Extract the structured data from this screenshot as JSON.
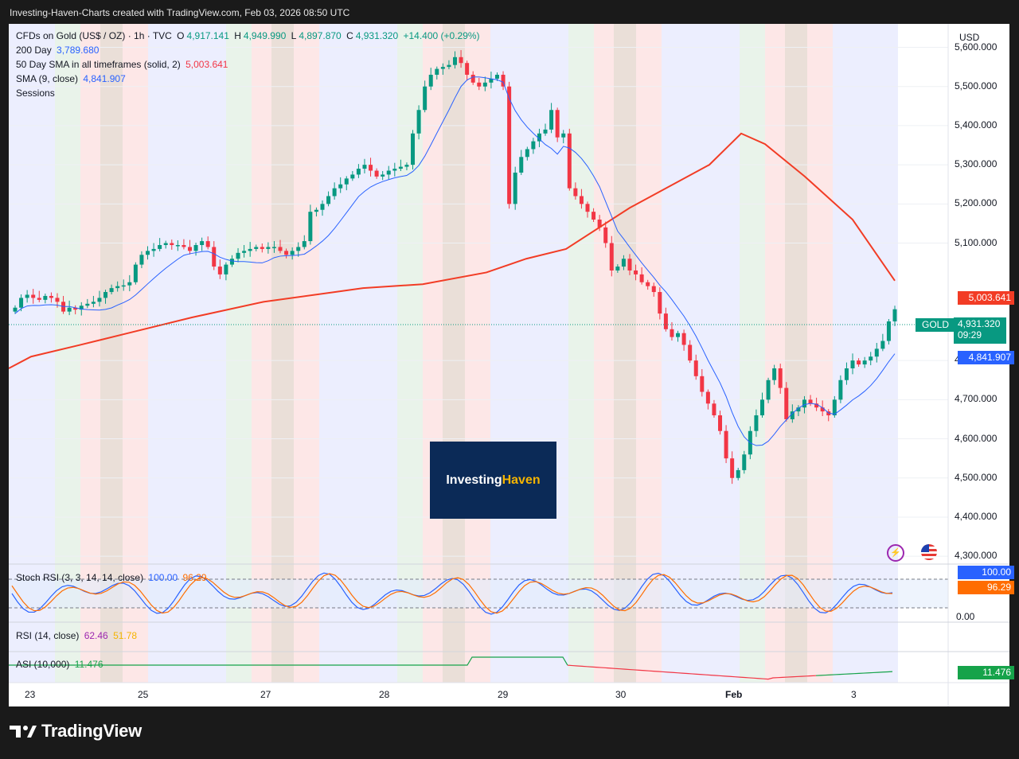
{
  "topbar": {
    "caption": "Investing-Haven-Charts created with TradingView.com, Feb 03, 2026 08:50 UTC"
  },
  "legend": {
    "symbol": "CFDs on Gold (US$ / OZ) · 1h · TVC",
    "o_label": "O",
    "o_value": "4,917.141",
    "h_label": "H",
    "h_value": "4,949.990",
    "l_label": "L",
    "l_value": "4,897.870",
    "c_label": "C",
    "c_value": "4,931.320",
    "change": "+14.400 (+0.29%)",
    "sma200_label": "200 Day",
    "sma200_value": "3,789.680",
    "sma50_label": "50 Day SMA in all timeframes (solid, 2)",
    "sma50_value": "5,003.641",
    "sma9_label": "SMA (9, close)",
    "sma9_value": "4,841.907",
    "sessions_label": "Sessions"
  },
  "price_axis": {
    "currency": "USD",
    "ticks": [
      "5,600.000",
      "5,500.000",
      "5,400.000",
      "5,300.000",
      "5,200.000",
      "5,100.000",
      "4,800.000",
      "4,700.000",
      "4,600.000",
      "4,500.000",
      "4,400.000",
      "4,300.000"
    ],
    "tick_values": [
      5600,
      5500,
      5400,
      5300,
      5200,
      5100,
      4800,
      4700,
      4600,
      4500,
      4400,
      4300
    ],
    "tag_sma50": "5,003.641",
    "tag_symbol": "GOLD",
    "tag_price": "4,931.320",
    "tag_countdown": "09:29",
    "tag_sma9": "4,841.907"
  },
  "time_axis": {
    "labels": [
      "23",
      "25",
      "27",
      "28",
      "29",
      "30",
      "Feb",
      "3"
    ]
  },
  "watermark": {
    "part1": "Investing",
    "part2": "Haven"
  },
  "stoch": {
    "label": "Stoch RSI (3, 3, 14, 14, close)",
    "k_value": "100.00",
    "d_value": "96.29",
    "axis_zero": "0.00",
    "tag_k": "100.00",
    "tag_d": "96.29"
  },
  "rsi": {
    "label": "RSI (14, close)",
    "value1": "62.46",
    "value2": "51.78"
  },
  "asi": {
    "label": "ASI (10,000)",
    "value": "11.476",
    "tag": "11.476"
  },
  "footer": {
    "brand": "TradingView"
  },
  "colors": {
    "up": "#089981",
    "down": "#f23645",
    "sma50": "#f23c25",
    "sma9": "#2962ff",
    "stoch_k": "#2962ff",
    "stoch_d": "#ff6d00",
    "asi_pos": "#16a34a",
    "asi_neg": "#f23645",
    "logo_bg": "#0b2a57",
    "logo_accent": "#f5b400"
  },
  "chart_data": {
    "type": "candlestick",
    "title": "CFDs on Gold (US$ / OZ) · 1h · TVC",
    "ylabel": "USD",
    "ylim": [
      4280,
      5660
    ],
    "x_labels": [
      "23",
      "25",
      "27",
      "28",
      "29",
      "30",
      "Feb",
      "3"
    ],
    "close": [
      4935,
      4960,
      4968,
      4960,
      4955,
      4965,
      4960,
      4950,
      4925,
      4935,
      4930,
      4940,
      4945,
      4950,
      4960,
      4975,
      4985,
      4990,
      4992,
      5000,
      5045,
      5070,
      5080,
      5085,
      5095,
      5100,
      5095,
      5095,
      5090,
      5080,
      5095,
      5105,
      5090,
      5040,
      5020,
      5045,
      5060,
      5075,
      5080,
      5085,
      5090,
      5085,
      5090,
      5090,
      5080,
      5070,
      5080,
      5090,
      5105,
      5180,
      5185,
      5200,
      5220,
      5240,
      5250,
      5265,
      5275,
      5290,
      5300,
      5285,
      5270,
      5275,
      5285,
      5290,
      5295,
      5300,
      5380,
      5440,
      5500,
      5530,
      5545,
      5550,
      5555,
      5575,
      5560,
      5530,
      5510,
      5500,
      5510,
      5520,
      5530,
      5500,
      5200,
      5280,
      5320,
      5340,
      5360,
      5380,
      5390,
      5440,
      5370,
      5380,
      5240,
      5220,
      5200,
      5180,
      5160,
      5140,
      5100,
      5030,
      5040,
      5060,
      5030,
      5020,
      5000,
      4990,
      4975,
      4920,
      4880,
      4860,
      4870,
      4840,
      4800,
      4760,
      4720,
      4690,
      4660,
      4620,
      4550,
      4500,
      4520,
      4560,
      4620,
      4660,
      4700,
      4750,
      4780,
      4730,
      4650,
      4670,
      4680,
      4700,
      4690,
      4680,
      4670,
      4660,
      4700,
      4750,
      4780,
      4800,
      4790,
      4800,
      4810,
      4830,
      4850,
      4900,
      4931
    ],
    "series": [
      {
        "name": "50 Day SMA in all timeframes (solid, 2)",
        "values": [
          4780,
          4810,
          4840,
          4870,
          4910,
          4950,
          4975,
          4985,
          4995,
          5025,
          5060,
          5085,
          5190,
          5300,
          5350,
          5380,
          5353,
          5270,
          5160,
          5004
        ]
      },
      {
        "name": "SMA (9, close)",
        "last_value": 4841.907
      }
    ]
  }
}
